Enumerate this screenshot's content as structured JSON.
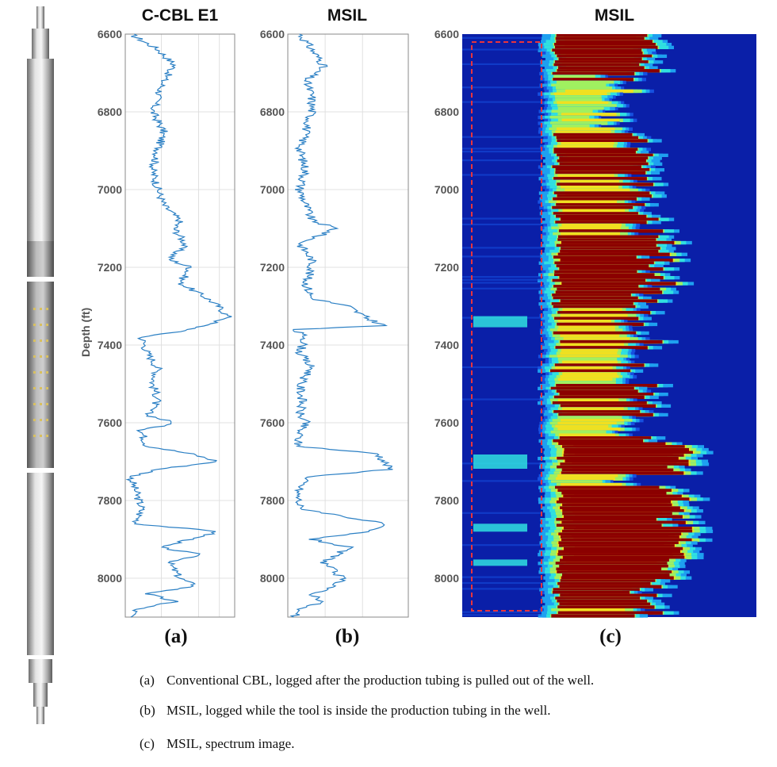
{
  "panels": [
    {
      "title": "C-CBL E1",
      "label": "(a)"
    },
    {
      "title": "MSIL",
      "label": "(b)"
    },
    {
      "title": "MSIL",
      "label": "(c)"
    }
  ],
  "ylabel": "Depth (ft)",
  "captions": [
    {
      "key": "(a)",
      "text": "Conventional CBL, logged after the production tubing is pulled out of the well."
    },
    {
      "key": "(b)",
      "text": "MSIL, logged while the tool is inside the production tubing in the well."
    },
    {
      "key": "(c)",
      "text": "MSIL, spectrum image."
    }
  ],
  "colors": {
    "line": "#2a7fc4",
    "heat_low": "#0a1fa8",
    "heat_high": "#8b0000",
    "highlight_box": "#e8343c"
  },
  "chart_data": [
    {
      "type": "line",
      "title": "C-CBL E1",
      "ylabel": "Depth (ft)",
      "ylim": [
        8100,
        6600
      ],
      "yticks": [
        6600,
        6800,
        7000,
        7200,
        7400,
        7600,
        7800,
        8000
      ],
      "xlim": [
        0,
        1
      ],
      "grid": true,
      "series": [
        {
          "depth": [
            6600,
            6640,
            6680,
            6720,
            6760,
            6800,
            6850,
            6900,
            6950,
            7000,
            7040,
            7080,
            7100,
            7140,
            7180,
            7200,
            7240,
            7280,
            7300,
            7330,
            7360,
            7380,
            7420,
            7460,
            7500,
            7540,
            7580,
            7600,
            7620,
            7660,
            7680,
            7700,
            7720,
            7740,
            7780,
            7820,
            7860,
            7880,
            7900,
            7920,
            7940,
            7960,
            8000,
            8020,
            8040,
            8060,
            8080,
            8100
          ],
          "value": [
            0.05,
            0.3,
            0.45,
            0.35,
            0.3,
            0.25,
            0.35,
            0.3,
            0.25,
            0.3,
            0.35,
            0.5,
            0.45,
            0.55,
            0.4,
            0.6,
            0.5,
            0.75,
            0.85,
            0.95,
            0.6,
            0.15,
            0.2,
            0.3,
            0.25,
            0.3,
            0.2,
            0.45,
            0.15,
            0.2,
            0.6,
            0.85,
            0.3,
            0.05,
            0.1,
            0.15,
            0.1,
            0.85,
            0.6,
            0.3,
            0.7,
            0.4,
            0.5,
            0.65,
            0.2,
            0.45,
            0.1,
            0.05
          ]
        }
      ]
    },
    {
      "type": "line",
      "title": "MSIL",
      "ylabel": "Depth (ft)",
      "ylim": [
        8100,
        6600
      ],
      "yticks": [
        6600,
        6800,
        7000,
        7200,
        7400,
        7600,
        7800,
        8000
      ],
      "xlim": [
        0,
        1
      ],
      "grid": true,
      "series": [
        {
          "depth": [
            6600,
            6640,
            6680,
            6720,
            6760,
            6800,
            6850,
            6900,
            6950,
            7000,
            7040,
            7080,
            7100,
            7140,
            7180,
            7200,
            7240,
            7280,
            7300,
            7330,
            7350,
            7360,
            7380,
            7420,
            7460,
            7500,
            7540,
            7580,
            7600,
            7620,
            7660,
            7680,
            7700,
            7720,
            7740,
            7780,
            7820,
            7860,
            7880,
            7900,
            7920,
            7960,
            8000,
            8020,
            8040,
            8060,
            8080,
            8100
          ],
          "value": [
            0.1,
            0.2,
            0.3,
            0.15,
            0.2,
            0.2,
            0.15,
            0.1,
            0.15,
            0.1,
            0.15,
            0.2,
            0.4,
            0.1,
            0.2,
            0.2,
            0.15,
            0.2,
            0.5,
            0.65,
            0.8,
            0.05,
            0.15,
            0.1,
            0.2,
            0.1,
            0.12,
            0.1,
            0.15,
            0.1,
            0.08,
            0.75,
            0.8,
            0.85,
            0.15,
            0.08,
            0.1,
            0.8,
            0.65,
            0.2,
            0.5,
            0.3,
            0.45,
            0.4,
            0.2,
            0.3,
            0.08,
            0.05
          ]
        }
      ]
    },
    {
      "type": "heatmap",
      "title": "MSIL",
      "ylabel": "Depth (ft)",
      "ylim": [
        8100,
        6600
      ],
      "yticks": [
        6600,
        6800,
        7000,
        7200,
        7400,
        7600,
        7800,
        8000
      ],
      "grid": false
    }
  ]
}
